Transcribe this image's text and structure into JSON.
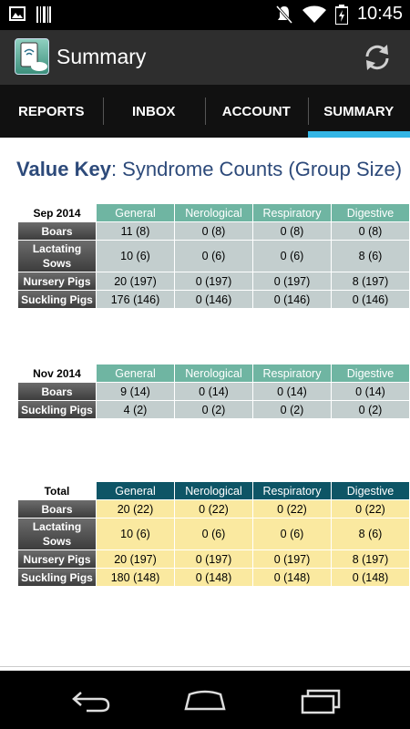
{
  "status_bar": {
    "time": "10:45"
  },
  "app": {
    "title": "Summary"
  },
  "tabs": [
    {
      "label": "REPORTS"
    },
    {
      "label": "INBOX"
    },
    {
      "label": "ACCOUNT"
    },
    {
      "label": "SUMMARY"
    }
  ],
  "value_key": {
    "prefix": "Value Key",
    "suffix": ": Syndrome Counts (Group Size)"
  },
  "columns": [
    "General",
    "Nerological",
    "Respiratory",
    "Digestive"
  ],
  "tables": [
    {
      "period": "Sep 2014",
      "rows": [
        {
          "label": "Boars",
          "values": [
            "11 (8)",
            "0 (8)",
            "0 (8)",
            "0 (8)"
          ]
        },
        {
          "label": "Lactating Sows",
          "values": [
            "10 (6)",
            "0 (6)",
            "0 (6)",
            "8 (6)"
          ]
        },
        {
          "label": "Nursery Pigs",
          "values": [
            "20 (197)",
            "0 (197)",
            "0 (197)",
            "8 (197)"
          ]
        },
        {
          "label": "Suckling Pigs",
          "values": [
            "176 (146)",
            "0 (146)",
            "0 (146)",
            "0 (146)"
          ]
        }
      ]
    },
    {
      "period": "Nov 2014",
      "rows": [
        {
          "label": "Boars",
          "values": [
            "9 (14)",
            "0 (14)",
            "0 (14)",
            "0 (14)"
          ]
        },
        {
          "label": "Suckling Pigs",
          "values": [
            "4 (2)",
            "0 (2)",
            "0 (2)",
            "0 (2)"
          ]
        }
      ]
    },
    {
      "period": "Total",
      "rows": [
        {
          "label": "Boars",
          "values": [
            "20 (22)",
            "0 (22)",
            "0 (22)",
            "0 (22)"
          ]
        },
        {
          "label": "Lactating Sows",
          "values": [
            "10 (6)",
            "0 (6)",
            "0 (6)",
            "8 (6)"
          ]
        },
        {
          "label": "Nursery Pigs",
          "values": [
            "20 (197)",
            "0 (197)",
            "0 (197)",
            "8 (197)"
          ]
        },
        {
          "label": "Suckling Pigs",
          "values": [
            "180 (148)",
            "0 (148)",
            "0 (148)",
            "0 (148)"
          ]
        }
      ]
    }
  ],
  "icons": {
    "gallery": "image-icon",
    "barcode": "barcode-icon",
    "mute": "mute-icon",
    "wifi": "wifi-icon",
    "battery": "battery-icon",
    "refresh": "refresh-icon",
    "back": "back-icon",
    "home": "home-icon",
    "recents": "recents-icon"
  },
  "colors": {
    "tab_indicator": "#33b5e5",
    "header_teal": "#6fb5a2",
    "header_total": "#0e5566",
    "cell_grey": "#c3cece",
    "cell_yellow": "#fae9a0",
    "value_key_text": "#2d4a7a"
  }
}
